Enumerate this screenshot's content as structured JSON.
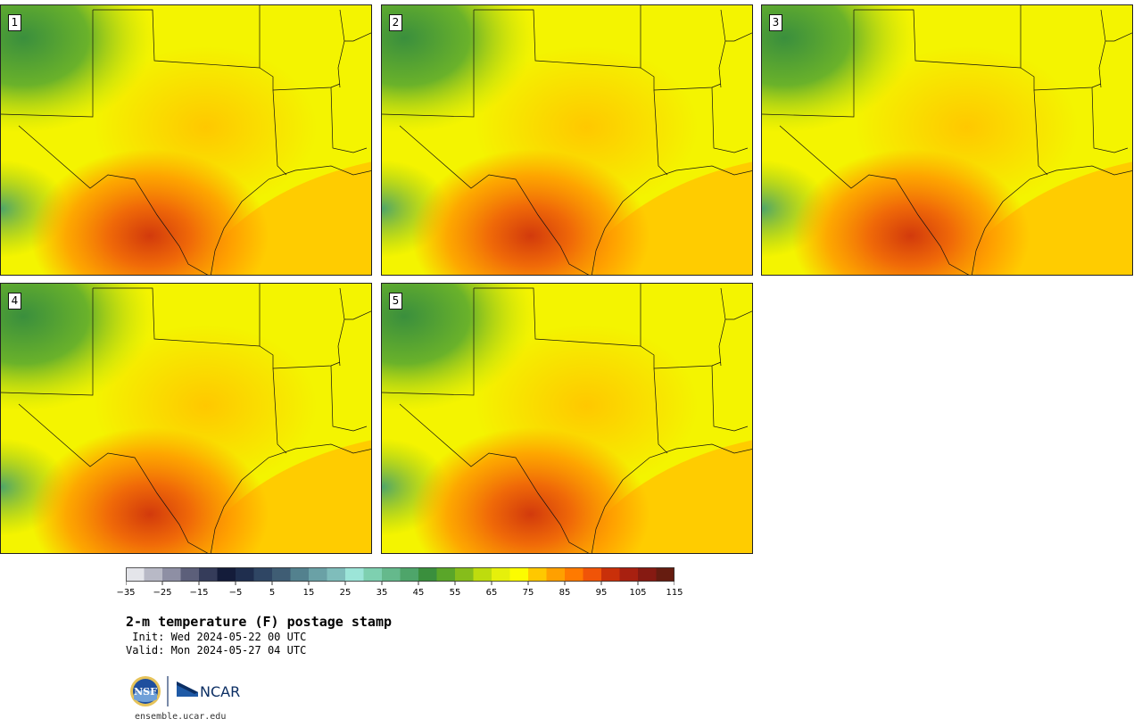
{
  "map": {
    "title": "2-m temperature (F) postage stamp",
    "init_line": " Init: Wed 2024-05-22 00 UTC",
    "valid_line": "Valid: Mon 2024-05-27 04 UTC",
    "website": "ensemble.ucar.edu",
    "panels": [
      {
        "member": "1"
      },
      {
        "member": "2"
      },
      {
        "member": "3"
      },
      {
        "member": "4"
      },
      {
        "member": "5"
      }
    ],
    "colorbar": {
      "tick_labels": [
        "−35",
        "−25",
        "−15",
        "−5",
        "5",
        "15",
        "25",
        "35",
        "45",
        "55",
        "65",
        "75",
        "85",
        "95",
        "105",
        "115"
      ],
      "colors": [
        "#e4e5ea",
        "#b8b9c6",
        "#8e8fa4",
        "#5c5f7a",
        "#353c5a",
        "#141c3a",
        "#1f2e4e",
        "#2f4664",
        "#3f5d74",
        "#53818e",
        "#6aa1a6",
        "#7fbdbb",
        "#9ce5d8",
        "#7ed0b0",
        "#65b98c",
        "#4ea56a",
        "#3a8f3d",
        "#5aa629",
        "#86bd1b",
        "#bedc0e",
        "#e6f00b",
        "#fcfc00",
        "#ffc800",
        "#ffa000",
        "#ff7a00",
        "#f05408",
        "#c9300a",
        "#a82010",
        "#861a12",
        "#661c10"
      ]
    },
    "logos": {
      "nsf": "NSF",
      "ncar": "NCAR"
    }
  }
}
